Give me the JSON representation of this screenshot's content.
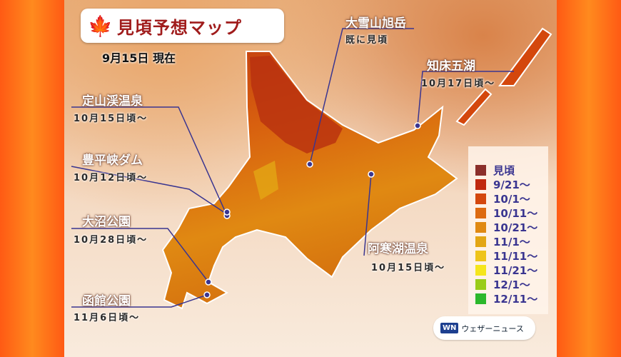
{
  "title": "見頃予想マップ",
  "as_of": "9月15日 現在",
  "spots": [
    {
      "name": "大雪山旭岳",
      "date": "既に見頃"
    },
    {
      "name": "知床五湖",
      "date": "10月17日頃～"
    },
    {
      "name": "定山渓温泉",
      "date": "10月15日頃～"
    },
    {
      "name": "豊平峡ダム",
      "date": "10月12日頃～"
    },
    {
      "name": "大沼公園",
      "date": "10月28日頃～"
    },
    {
      "name": "函館公園",
      "date": "11月6日頃～"
    },
    {
      "name": "阿寒湖温泉",
      "date": "10月15日頃～"
    }
  ],
  "legend": [
    {
      "label": "見頃",
      "color": "#8b2f2a"
    },
    {
      "label": "9/21～",
      "color": "#c0280e"
    },
    {
      "label": "10/1～",
      "color": "#d4470c"
    },
    {
      "label": "10/11～",
      "color": "#dd6a10"
    },
    {
      "label": "10/21～",
      "color": "#e08912"
    },
    {
      "label": "11/1～",
      "color": "#e3a614"
    },
    {
      "label": "11/11～",
      "color": "#eec41a"
    },
    {
      "label": "11/21～",
      "color": "#f5e61c"
    },
    {
      "label": "12/1～",
      "color": "#99cc18"
    },
    {
      "label": "12/11～",
      "color": "#2cb82c"
    }
  ],
  "logo": {
    "mark": "WN",
    "text": "ウェザーニュース"
  },
  "icons": {
    "title": "maple-leaf-icon"
  }
}
